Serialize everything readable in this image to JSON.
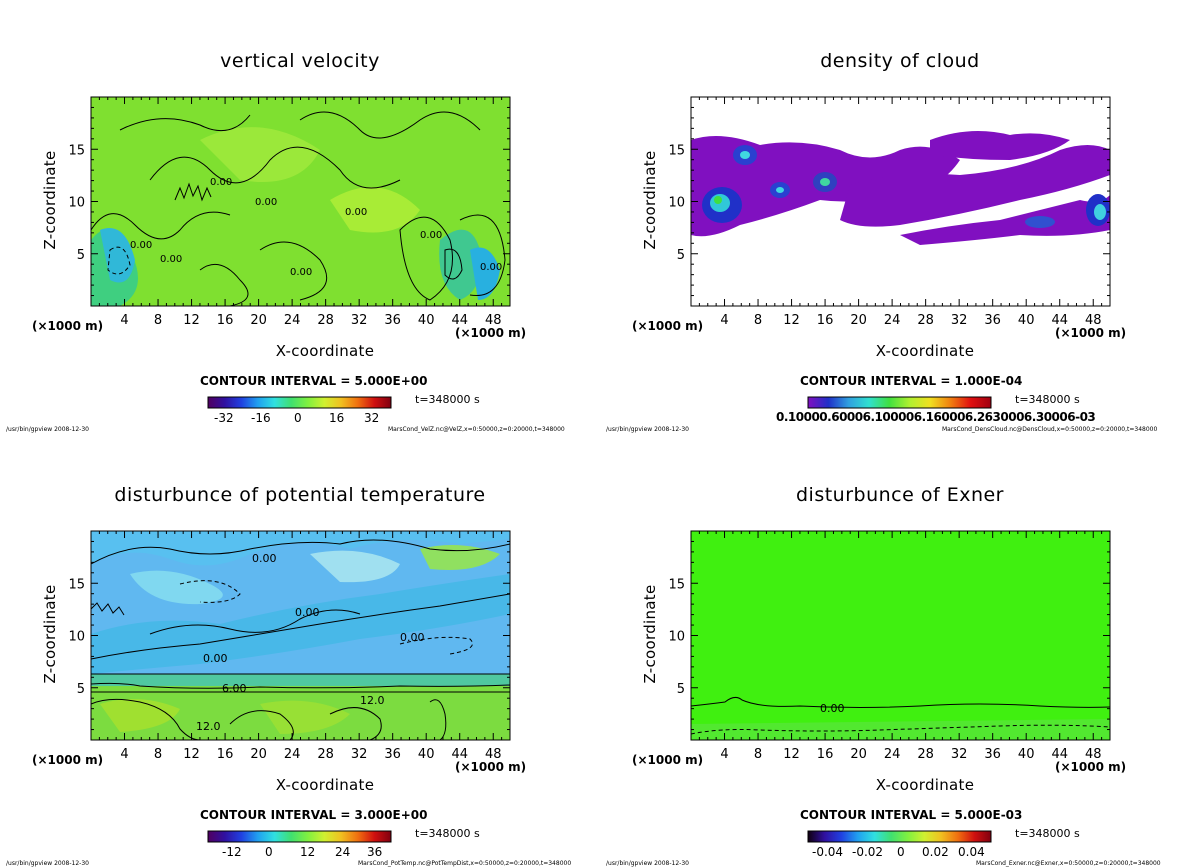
{
  "panels": [
    {
      "title": "vertical velocity",
      "xlabel": "X-coordinate",
      "ylabel": "Z-coordinate",
      "xunit": "(×1000 m)",
      "contour_interval": "CONTOUR INTERVAL = 5.000E+00",
      "time": "t=348000 s",
      "footer_left": "/usr/bin/gpview  2008-12-30",
      "footer_right": "MarsCond_VelZ.nc@VelZ,x=0:50000,z=0:20000,t=348000",
      "colorbar_ticks": [
        "-32",
        "-16",
        "0",
        "16",
        "32"
      ],
      "contour_labels": [
        "0.00",
        "0.00",
        "0.00",
        "0.00",
        "0.00",
        "0.00",
        "0.00",
        "0.00"
      ],
      "field_color": "#7fe030"
    },
    {
      "title": "density of cloud",
      "xlabel": "X-coordinate",
      "ylabel": "Z-coordinate",
      "xunit": "(×1000 m)",
      "contour_interval": "CONTOUR INTERVAL = 1.000E-04",
      "time": "t=348000 s",
      "footer_left": "/usr/bin/gpview  2008-12-30",
      "footer_right": "MarsCond_DensCloud.nc@DensCloud,x=0:50000,z=0:20000,t=348000",
      "colorbar_tick_overlap": "0.10000.60006.100006.160006.2630006.30006-03",
      "field_color": "#8010c0"
    },
    {
      "title": "disturbunce of potential temperature",
      "xlabel": "X-coordinate",
      "ylabel": "Z-coordinate",
      "xunit": "(×1000 m)",
      "contour_interval": "CONTOUR INTERVAL = 3.000E+00",
      "time": "t=348000 s",
      "footer_left": "/usr/bin/gpview  2008-12-30",
      "footer_right": "MarsCond_PotTemp.nc@PotTempDist,x=0:50000,z=0:20000,t=348000",
      "colorbar_ticks": [
        "-12",
        "0",
        "12",
        "24",
        "36"
      ],
      "contour_labels": [
        "0.00",
        "0.00",
        "0.00",
        "0.00",
        "6.00",
        "12.0",
        "12.0"
      ],
      "field_color": "#60b8f0"
    },
    {
      "title": "disturbunce of Exner",
      "xlabel": "X-coordinate",
      "ylabel": "Z-coordinate",
      "xunit": "(×1000 m)",
      "contour_interval": "CONTOUR INTERVAL = 5.000E-03",
      "time": "t=348000 s",
      "footer_left": "/usr/bin/gpview  2008-12-30",
      "footer_right": "MarsCond_Exner.nc@Exner,x=0:50000,z=0:20000,t=348000",
      "colorbar_ticks": [
        "-0.04",
        "-0.02",
        "0",
        "0.02",
        "0.04"
      ],
      "contour_labels": [
        "0.00"
      ],
      "field_color": "#40f010"
    }
  ],
  "chart_data": [
    {
      "type": "heatmap",
      "title": "vertical velocity",
      "xlabel": "X-coordinate",
      "ylabel": "Z-coordinate",
      "x_ticks": [
        4,
        8,
        12,
        16,
        20,
        24,
        28,
        32,
        36,
        40,
        44,
        48
      ],
      "y_ticks": [
        5,
        10,
        15
      ],
      "xlim": [
        0,
        50
      ],
      "ylim": [
        0,
        20
      ],
      "colorbar_ticks": [
        -32,
        -16,
        0,
        16,
        32
      ],
      "contour_interval": 5.0
    },
    {
      "type": "heatmap",
      "title": "density of cloud",
      "xlabel": "X-coordinate",
      "ylabel": "Z-coordinate",
      "x_ticks": [
        4,
        8,
        12,
        16,
        20,
        24,
        28,
        32,
        36,
        40,
        44,
        48
      ],
      "y_ticks": [
        5,
        10,
        15
      ],
      "xlim": [
        0,
        50
      ],
      "ylim": [
        0,
        20
      ],
      "contour_interval": 0.0001
    },
    {
      "type": "heatmap",
      "title": "disturbunce of potential temperature",
      "xlabel": "X-coordinate",
      "ylabel": "Z-coordinate",
      "x_ticks": [
        4,
        8,
        12,
        16,
        20,
        24,
        28,
        32,
        36,
        40,
        44,
        48
      ],
      "y_ticks": [
        5,
        10,
        15
      ],
      "xlim": [
        0,
        50
      ],
      "ylim": [
        0,
        20
      ],
      "colorbar_ticks": [
        -12,
        0,
        12,
        24,
        36
      ],
      "contour_interval": 3.0
    },
    {
      "type": "heatmap",
      "title": "disturbunce of Exner",
      "xlabel": "X-coordinate",
      "ylabel": "Z-coordinate",
      "x_ticks": [
        4,
        8,
        12,
        16,
        20,
        24,
        28,
        32,
        36,
        40,
        44,
        48
      ],
      "y_ticks": [
        5,
        10,
        15
      ],
      "xlim": [
        0,
        50
      ],
      "ylim": [
        0,
        20
      ],
      "colorbar_ticks": [
        -0.04,
        -0.02,
        0,
        0.02,
        0.04
      ],
      "contour_interval": 0.005
    }
  ]
}
